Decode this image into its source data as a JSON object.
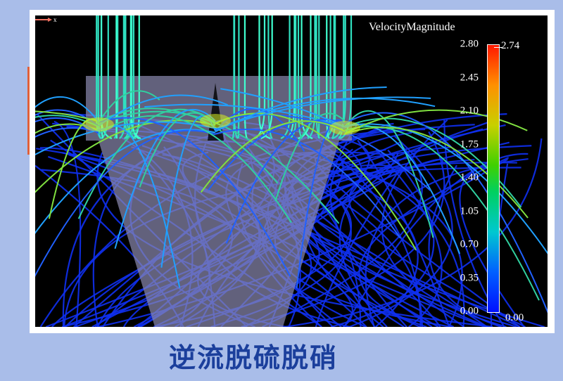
{
  "legend": {
    "title": "VelocityMagnitude",
    "ticks": [
      "2.80",
      "2.45",
      "2.10",
      "1.75",
      "1.40",
      "1.05",
      "0.70",
      "0.35",
      "0.00"
    ],
    "max_label": "2.74",
    "min_label": "0.00",
    "colormap": [
      "#0010ff",
      "#00c8d0",
      "#00d060",
      "#c8d000",
      "#ff9000",
      "#ff1800"
    ]
  },
  "axis": {
    "label": "x"
  },
  "caption": "逆流脱硫脱硝"
}
